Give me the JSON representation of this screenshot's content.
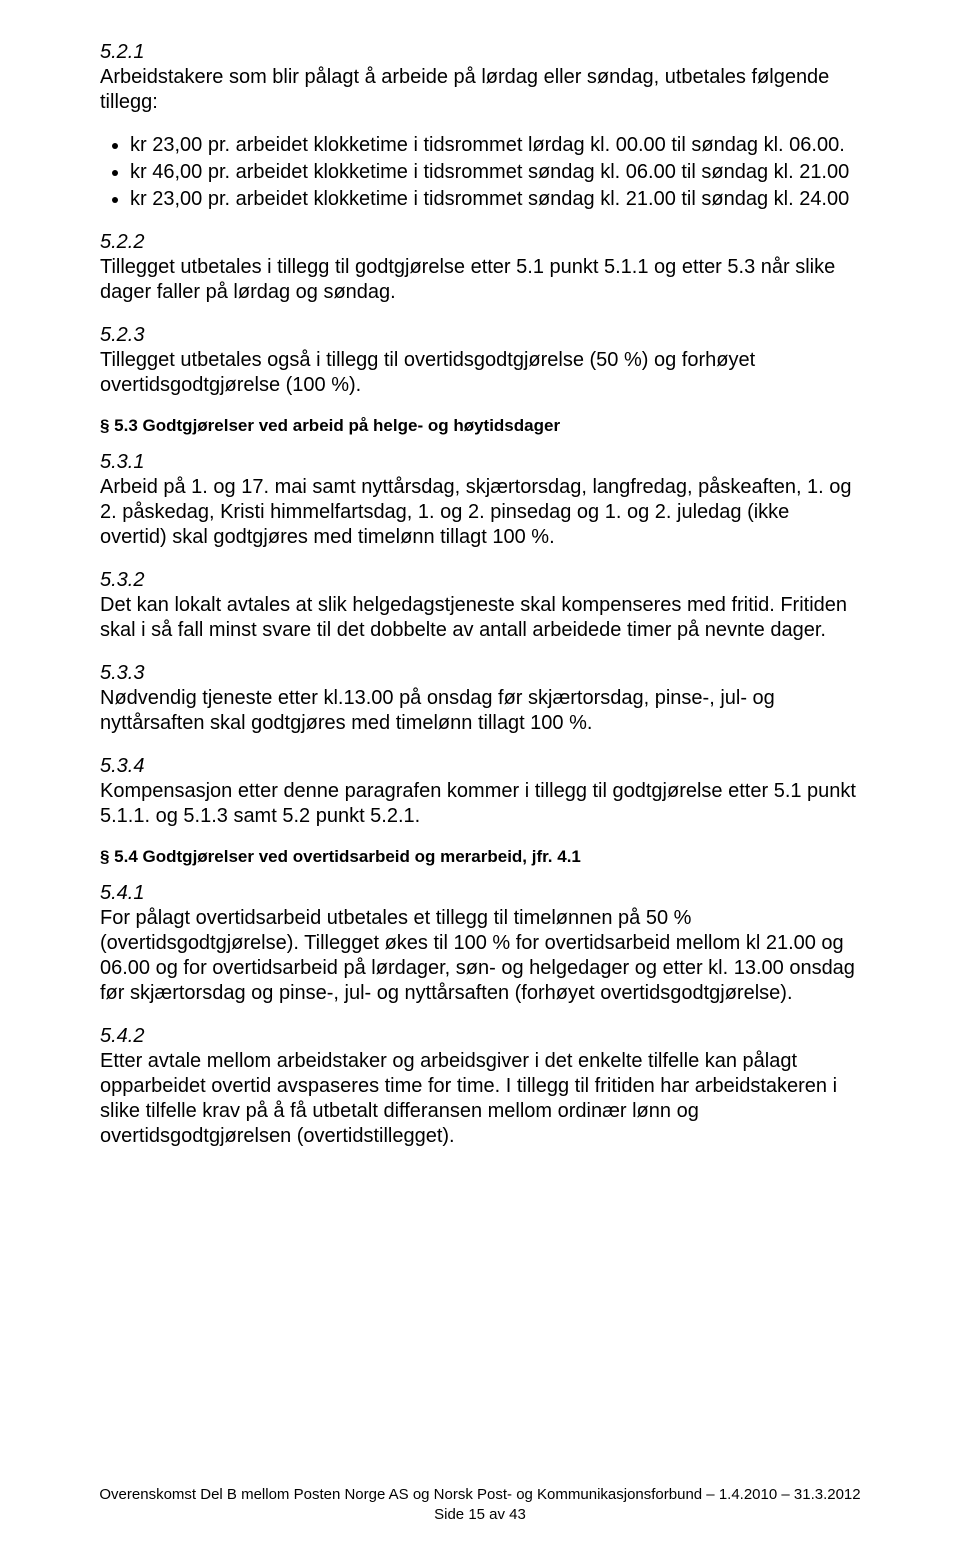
{
  "s521": {
    "num": "5.2.1",
    "text": "Arbeidstakere som blir pålagt å arbeide på lørdag eller søndag, utbetales følgende tillegg:",
    "bullets": [
      "kr 23,00 pr. arbeidet klokketime i tidsrommet lørdag kl. 00.00 til søndag kl. 06.00.",
      "kr 46,00 pr. arbeidet klokketime i tidsrommet søndag kl. 06.00 til søndag kl. 21.00",
      "kr 23,00 pr. arbeidet klokketime i tidsrommet søndag kl. 21.00 til søndag kl. 24.00"
    ]
  },
  "s522": {
    "num": "5.2.2",
    "text": "Tillegget utbetales i tillegg til godtgjørelse etter 5.1 punkt 5.1.1 og etter 5.3 når slike dager faller på lørdag og søndag."
  },
  "s523": {
    "num": "5.2.3",
    "text": "Tillegget utbetales også i tillegg til overtidsgodtgjørelse (50 %) og forhøyet overtidsgodtgjørelse (100 %)."
  },
  "h53": "§ 5.3 Godtgjørelser ved arbeid på helge- og høytidsdager",
  "s531": {
    "num": "5.3.1",
    "text": "Arbeid på 1. og 17. mai samt nyttårsdag, skjærtorsdag, langfredag, påskeaften, 1. og 2. påskedag, Kristi himmelfartsdag, 1. og 2. pinsedag og 1. og 2. juledag (ikke overtid) skal godtgjøres med timelønn tillagt 100 %."
  },
  "s532": {
    "num": "5.3.2",
    "text": "Det kan lokalt avtales at slik helgedagstjeneste skal kompenseres med fritid. Fritiden skal i så fall minst svare til det dobbelte av antall arbeidede timer på nevnte dager."
  },
  "s533": {
    "num": "5.3.3",
    "text": "Nødvendig tjeneste etter kl.13.00 på onsdag før skjærtorsdag, pinse-, jul- og nyttårsaften skal godtgjøres med timelønn tillagt 100 %."
  },
  "s534": {
    "num": "5.3.4",
    "text": "Kompensasjon etter denne paragrafen kommer i tillegg til godtgjørelse etter 5.1 punkt 5.1.1. og 5.1.3 samt 5.2 punkt 5.2.1."
  },
  "h54": "§ 5.4 Godtgjørelser ved overtidsarbeid og merarbeid, jfr. 4.1",
  "s541": {
    "num": "5.4.1",
    "text": "For pålagt overtidsarbeid utbetales et tillegg til timelønnen på 50 % (overtidsgodtgjørelse). Tillegget økes til 100 % for overtidsarbeid mellom kl 21.00 og 06.00 og for overtidsarbeid på lørdager, søn- og helgedager og etter kl. 13.00 onsdag før skjærtorsdag og pinse-, jul- og nyttårsaften (forhøyet overtidsgodtgjørelse)."
  },
  "s542": {
    "num": "5.4.2",
    "text": "Etter avtale mellom arbeidstaker og arbeidsgiver i det enkelte tilfelle kan pålagt opparbeidet overtid avspaseres time for time. I tillegg til fritiden har arbeidstakeren i slike tilfelle krav på å få utbetalt differansen mellom ordinær lønn og overtidsgodtgjørelsen (overtidstillegget)."
  },
  "footer": {
    "line1": "Overenskomst Del B mellom Posten Norge AS og Norsk Post- og Kommunikasjonsforbund – 1.4.2010 – 31.3.2012",
    "line2": "Side 15 av 43"
  }
}
